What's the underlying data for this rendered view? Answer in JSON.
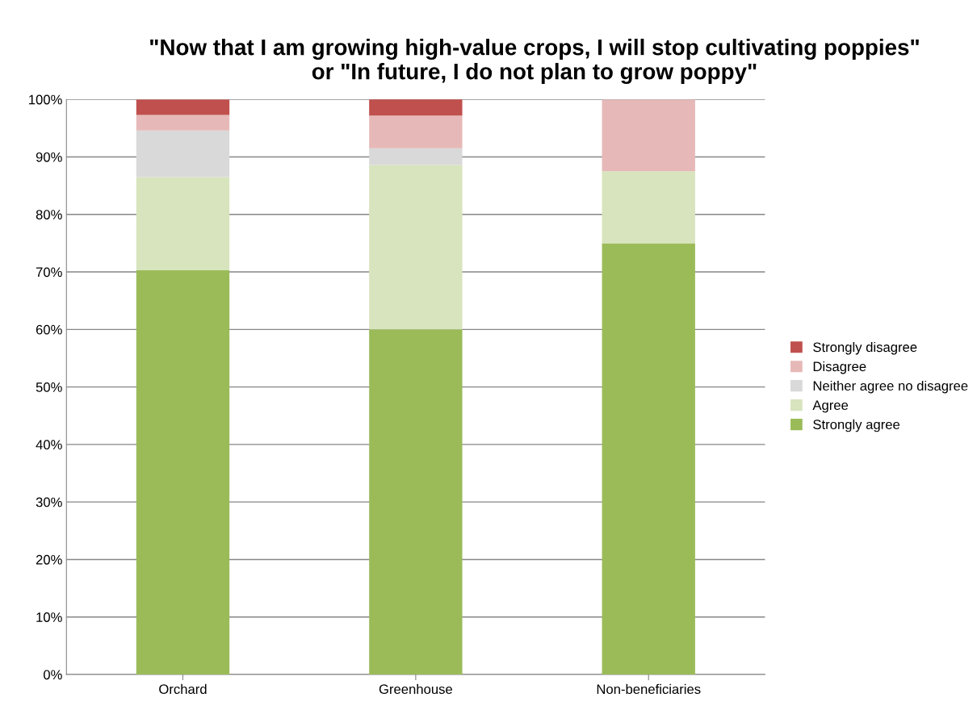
{
  "chart_data": {
    "type": "bar",
    "stacked": true,
    "title": "\"Now that I am growing high-value crops, I will stop cultivating poppies\"\nor \"In future, I do not plan to grow poppy\"",
    "categories": [
      "Orchard",
      "Greenhouse",
      "Non-beneficiaries"
    ],
    "series": [
      {
        "name": "Strongly agree",
        "color": "#9bbb59",
        "values": [
          70.3,
          60.0,
          75.0
        ]
      },
      {
        "name": "Agree",
        "color": "#d7e4bd",
        "values": [
          16.2,
          28.6,
          12.5
        ]
      },
      {
        "name": "Neither agree no disagree",
        "color": "#d9d9d9",
        "values": [
          8.1,
          2.9,
          0
        ]
      },
      {
        "name": "Disagree",
        "color": "#e6b9b8",
        "values": [
          2.7,
          5.7,
          12.5
        ]
      },
      {
        "name": "Strongly disagree",
        "color": "#c0504d",
        "values": [
          2.7,
          2.9,
          0
        ]
      }
    ],
    "ylim": [
      0,
      100
    ],
    "yticks": [
      {
        "value": 0,
        "label": "0%"
      },
      {
        "value": 10,
        "label": "10%"
      },
      {
        "value": 20,
        "label": "20%"
      },
      {
        "value": 30,
        "label": "30%"
      },
      {
        "value": 40,
        "label": "40%"
      },
      {
        "value": 50,
        "label": "50%"
      },
      {
        "value": 60,
        "label": "60%"
      },
      {
        "value": 70,
        "label": "70%"
      },
      {
        "value": 80,
        "label": "80%"
      },
      {
        "value": 90,
        "label": "90%"
      },
      {
        "value": 100,
        "label": "100%"
      }
    ],
    "grid": "y",
    "legend": "right"
  }
}
